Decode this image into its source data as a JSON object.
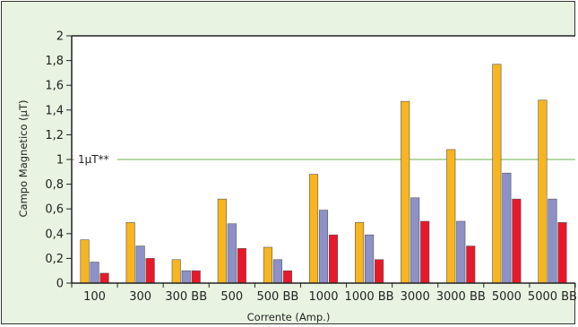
{
  "chart_data": {
    "type": "bar",
    "title": "",
    "xlabel": "Corrente (Amp.)",
    "ylabel": "Campo Magnetico (µT)",
    "ylim": [
      0,
      2
    ],
    "yticks": [
      "0",
      "0,2",
      "0,4",
      "0,6",
      "0,8",
      "1",
      "1,2",
      "1,4",
      "1,6",
      "1,8",
      "2"
    ],
    "grid": false,
    "legend": "none",
    "categories": [
      "100",
      "300",
      "300 BB",
      "500",
      "500 BB",
      "1000",
      "1000 BB",
      "3000",
      "3000 BB",
      "5000",
      "5000 BB"
    ],
    "series": [
      {
        "color": "#f7b51f",
        "values": [
          0.35,
          0.49,
          0.19,
          0.68,
          0.29,
          0.88,
          0.49,
          1.47,
          1.08,
          1.77,
          1.48
        ]
      },
      {
        "color": "#8c91c8",
        "values": [
          0.17,
          0.3,
          0.1,
          0.48,
          0.19,
          0.59,
          0.39,
          0.69,
          0.5,
          0.89,
          0.68
        ]
      },
      {
        "color": "#e8182a",
        "values": [
          0.08,
          0.2,
          0.1,
          0.28,
          0.1,
          0.39,
          0.19,
          0.5,
          0.3,
          0.68,
          0.49
        ]
      }
    ],
    "reference_line": {
      "value": 1,
      "label": "1µT**",
      "color": "#b6d9a6"
    }
  }
}
